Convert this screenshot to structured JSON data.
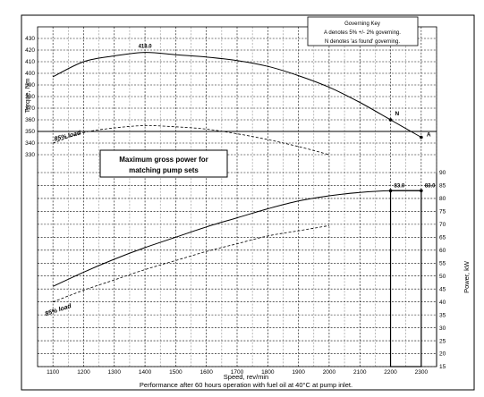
{
  "chart_data": [
    {
      "type": "line",
      "name": "torque",
      "ylabel": "Torque, Nm",
      "xlim": [
        1050,
        2350
      ],
      "ylim": [
        320,
        440
      ],
      "x_ticks": [
        1100,
        1200,
        1300,
        1400,
        1500,
        1600,
        1700,
        1800,
        1900,
        2000,
        2100,
        2200,
        2300
      ],
      "y_ticks": [
        330,
        340,
        350,
        360,
        370,
        380,
        390,
        400,
        410,
        420,
        430
      ],
      "grid": true,
      "series": [
        {
          "style": "solid",
          "x": [
            1100,
            1200,
            1300,
            1400,
            1500,
            1600,
            1700,
            1800,
            1900,
            2000,
            2100,
            2200,
            2300
          ],
          "y": [
            397,
            410,
            415,
            418,
            416,
            414,
            411,
            406,
            398,
            388,
            375,
            360,
            345
          ]
        },
        {
          "name": "85% load",
          "style": "dashed",
          "x": [
            1100,
            1200,
            1300,
            1400,
            1500,
            1600,
            1700,
            1800,
            1900,
            2000
          ],
          "y": [
            340,
            349,
            353,
            355,
            354,
            352,
            348,
            343,
            337,
            330
          ]
        }
      ],
      "reference_line": {
        "y": 350
      },
      "annotations": [
        {
          "text": "418.0",
          "x": 1400,
          "y": 418
        },
        {
          "text": "N",
          "x": 2200,
          "y": 360
        },
        {
          "text": "A",
          "x": 2300,
          "y": 345
        },
        {
          "text": "85% load"
        }
      ]
    },
    {
      "type": "line",
      "name": "power",
      "ylabel": "Power, kW",
      "xlabel": "Speed, rev/min",
      "xlim": [
        1050,
        2350
      ],
      "ylim": [
        15,
        90
      ],
      "x_ticks": [
        1100,
        1200,
        1300,
        1400,
        1500,
        1600,
        1700,
        1800,
        1900,
        2000,
        2100,
        2200,
        2300
      ],
      "y_ticks": [
        15,
        20,
        25,
        30,
        35,
        40,
        45,
        50,
        55,
        60,
        65,
        70,
        75,
        80,
        85,
        90
      ],
      "grid": true,
      "series": [
        {
          "style": "solid",
          "x": [
            1100,
            1200,
            1300,
            1400,
            1500,
            1600,
            1700,
            1800,
            1900,
            2000,
            2100,
            2200,
            2300
          ],
          "y": [
            46,
            51.5,
            56.5,
            61,
            65,
            69,
            72.5,
            76,
            79,
            81,
            82.3,
            83,
            83
          ]
        },
        {
          "name": "85% load",
          "style": "dashed",
          "x": [
            1100,
            1200,
            1300,
            1400,
            1500,
            1600,
            1700,
            1800,
            1900,
            2000
          ],
          "y": [
            40,
            44.5,
            48.5,
            52.5,
            56,
            59.5,
            62.5,
            65.5,
            67.5,
            69.5
          ]
        }
      ],
      "annotations": [
        {
          "text": "83.0",
          "x": 2200,
          "y": 83
        },
        {
          "text": "83.0",
          "x": 2300,
          "y": 83
        },
        {
          "text": "85% load"
        }
      ],
      "highlight_box": {
        "x": [
          2200,
          2300
        ],
        "y": [
          15,
          83
        ]
      }
    }
  ],
  "key": {
    "title": "Governing Key",
    "line_a": "A denotes 5% +/- 2% governing.",
    "line_n": "N denotes 'as found' governing."
  },
  "callout": {
    "line1": "Maximum gross power for",
    "line2": "matching pump sets"
  },
  "footer": "Performance after 60 hours operation with fuel oil at 40°C at pump inlet."
}
